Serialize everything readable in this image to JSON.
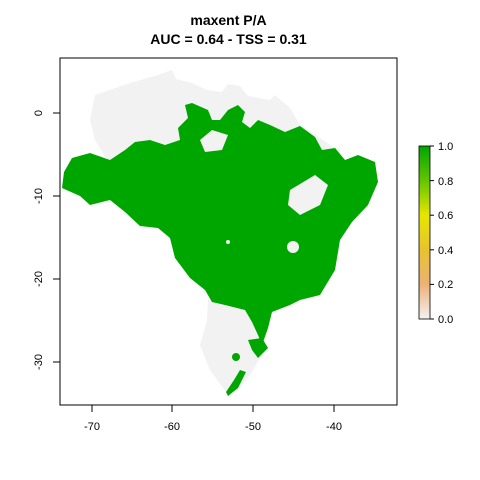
{
  "title_line1": "maxent P/A",
  "title_line2": "AUC = 0.64 - TSS = 0.31",
  "x_ticks": [
    "-70",
    "-60",
    "-50",
    "-40"
  ],
  "y_ticks": [
    "0",
    "-10",
    "-20",
    "-30"
  ],
  "legend_ticks": [
    "1.0",
    "0.8",
    "0.6",
    "0.4",
    "0.2",
    "0.0"
  ],
  "map": {
    "x_range": [
      -74,
      -33
    ],
    "y_range": [
      -35,
      6.5
    ],
    "present_color": "#00a600",
    "absent_color": "#f2f2f2",
    "legend_colors": [
      "#00a600",
      "#63c600",
      "#e6e600",
      "#e8c32e",
      "#ecb176",
      "#f2f2f2"
    ]
  }
}
